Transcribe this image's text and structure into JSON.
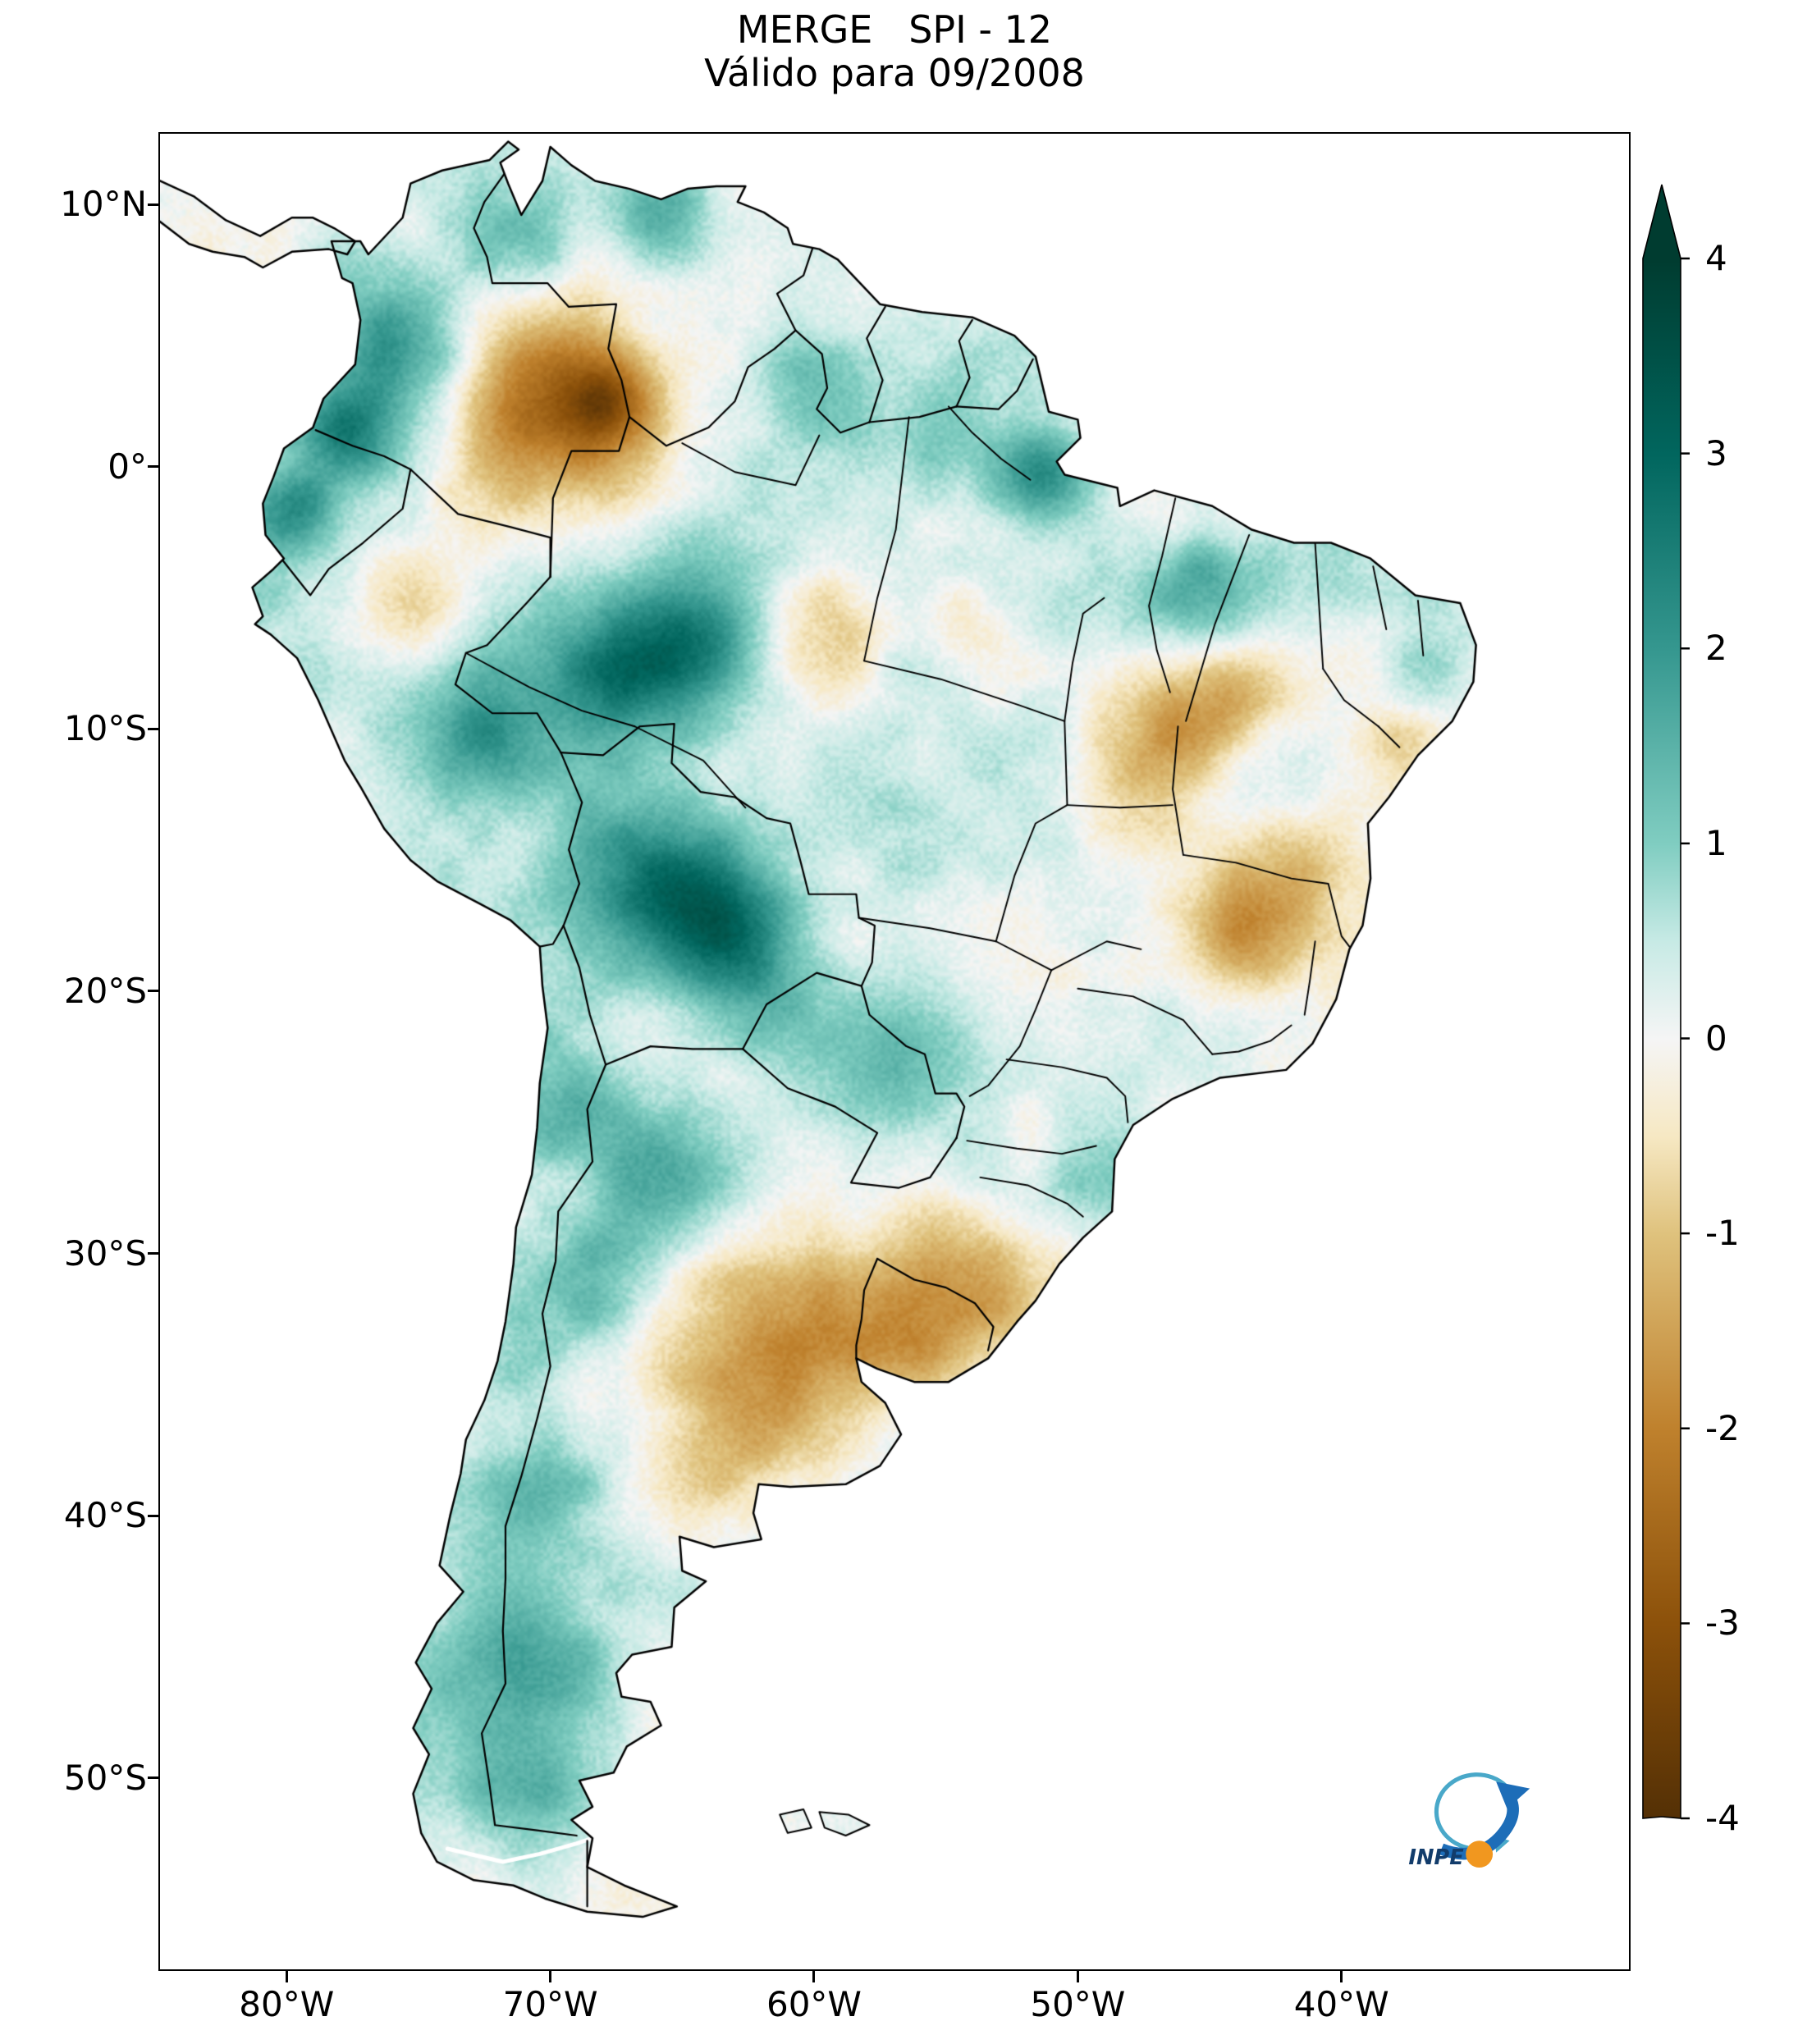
{
  "title": "MERGE   SPI - 12",
  "subtitle": "Válido para 09/2008",
  "axes": {
    "lat_ticks": [
      {
        "label": "10°N",
        "value": 10
      },
      {
        "label": "0°",
        "value": 0
      },
      {
        "label": "10°S",
        "value": -10
      },
      {
        "label": "20°S",
        "value": -20
      },
      {
        "label": "30°S",
        "value": -30
      },
      {
        "label": "40°S",
        "value": -40
      },
      {
        "label": "50°S",
        "value": -50
      }
    ],
    "lon_ticks": [
      {
        "label": "80°W",
        "value": -80
      },
      {
        "label": "70°W",
        "value": -70
      },
      {
        "label": "60°W",
        "value": -60
      },
      {
        "label": "50°W",
        "value": -50
      },
      {
        "label": "40°W",
        "value": -40
      }
    ],
    "lon_range": [
      -84.8,
      -29.1
    ],
    "lat_range": [
      -57.3,
      12.7
    ]
  },
  "colorbar": {
    "values": [
      4,
      3,
      2,
      1,
      0,
      -1,
      -2,
      -3,
      -4
    ],
    "vmin": -4,
    "vmax": 4,
    "extend": "both"
  },
  "logo": {
    "text": "INPE",
    "swirl_color": "#49a8c9",
    "arrow_color": "#1d6db8",
    "dot_color": "#f1971f",
    "text_color": "#123c6b"
  },
  "chart_data": {
    "type": "heatmap",
    "title": "MERGE   SPI - 12",
    "subtitle": "Válido para 09/2008",
    "dataset": "MERGE",
    "variable": "SPI-12",
    "valid_for": "09/2008",
    "region": "South America",
    "colormap": "BrBG",
    "value_range": [
      -4,
      4
    ],
    "colormap_stops": [
      {
        "value": -4,
        "color": "#543005"
      },
      {
        "value": -3,
        "color": "#8c510a"
      },
      {
        "value": -2,
        "color": "#bf812d"
      },
      {
        "value": -1,
        "color": "#dfc27d"
      },
      {
        "value": -0.5,
        "color": "#f6e8c3"
      },
      {
        "value": 0,
        "color": "#f5f5f5"
      },
      {
        "value": 0.5,
        "color": "#c7eae5"
      },
      {
        "value": 1,
        "color": "#80cdc1"
      },
      {
        "value": 2,
        "color": "#35978f"
      },
      {
        "value": 3,
        "color": "#01665e"
      },
      {
        "value": 4,
        "color": "#003c30"
      }
    ],
    "anomalies": {
      "columns": [
        "lon",
        "lat",
        "sigma_deg",
        "spi_peak"
      ],
      "rows": [
        [
          -75.8,
          4.8,
          2.0,
          2.2
        ],
        [
          -77.6,
          1.2,
          1.4,
          1.8
        ],
        [
          -79.8,
          -1.8,
          1.2,
          1.6
        ],
        [
          -71.0,
          8.0,
          1.8,
          1.4
        ],
        [
          -66.0,
          9.8,
          1.4,
          1.4
        ],
        [
          -68.3,
          1.8,
          2.4,
          -2.4
        ],
        [
          -68.0,
          2.4,
          1.0,
          -1.4
        ],
        [
          -70.8,
          3.8,
          2.2,
          -1.0
        ],
        [
          -71.9,
          6.8,
          1.6,
          -0.8
        ],
        [
          -75.0,
          -6.0,
          1.8,
          -1.0
        ],
        [
          -64.8,
          -6.8,
          2.0,
          2.3
        ],
        [
          -67.8,
          -8.2,
          1.8,
          1.4
        ],
        [
          -72.6,
          -9.8,
          1.5,
          1.2
        ],
        [
          -59.5,
          -6.3,
          1.8,
          -0.8
        ],
        [
          -54.3,
          -5.8,
          1.5,
          -0.7
        ],
        [
          -51.3,
          -0.3,
          1.3,
          2.0
        ],
        [
          -54.8,
          1.6,
          1.8,
          0.9
        ],
        [
          -60.3,
          3.2,
          1.4,
          0.8
        ],
        [
          -45.3,
          -4.6,
          1.5,
          1.2
        ],
        [
          -40.1,
          -4.2,
          1.4,
          0.8
        ],
        [
          -36.9,
          -7.6,
          1.2,
          0.9
        ],
        [
          -46.8,
          -10.2,
          2.0,
          -1.5
        ],
        [
          -44.6,
          -9.0,
          1.4,
          -1.0
        ],
        [
          -48.5,
          -12.5,
          1.6,
          -0.8
        ],
        [
          -43.8,
          -17.8,
          1.7,
          -1.9
        ],
        [
          -42.0,
          -15.8,
          1.8,
          -0.9
        ],
        [
          -63.8,
          -17.6,
          2.2,
          2.6
        ],
        [
          -66.3,
          -15.2,
          1.9,
          1.4
        ],
        [
          -60.0,
          -21.5,
          1.9,
          0.9
        ],
        [
          -65.8,
          -27.0,
          2.0,
          1.9
        ],
        [
          -68.4,
          -31.6,
          1.9,
          1.4
        ],
        [
          -69.9,
          -24.5,
          1.7,
          0.9
        ],
        [
          -71.3,
          -33.8,
          1.4,
          1.0
        ],
        [
          -70.2,
          -38.8,
          2.0,
          1.2
        ],
        [
          -71.2,
          -45.0,
          2.4,
          1.1
        ],
        [
          -70.3,
          -51.5,
          2.0,
          1.1
        ],
        [
          -61.5,
          -34.5,
          2.8,
          -1.5
        ],
        [
          -58.6,
          -32.3,
          2.0,
          -1.0
        ],
        [
          -55.8,
          -33.4,
          1.7,
          -0.9
        ],
        [
          -54.4,
          -30.2,
          1.7,
          -1.0
        ],
        [
          -52.6,
          -31.4,
          1.3,
          -0.8
        ],
        [
          -63.6,
          -38.3,
          2.0,
          -0.9
        ],
        [
          -57.4,
          -13.6,
          2.4,
          0.6
        ],
        [
          -56.2,
          -21.8,
          1.6,
          0.8
        ],
        [
          -49.6,
          -20.6,
          1.8,
          -0.6
        ],
        [
          -51.6,
          -25.4,
          1.4,
          -0.6
        ],
        [
          -37.9,
          -10.9,
          1.2,
          -0.8
        ],
        [
          -49.1,
          -27.6,
          1.4,
          0.6
        ]
      ]
    }
  }
}
